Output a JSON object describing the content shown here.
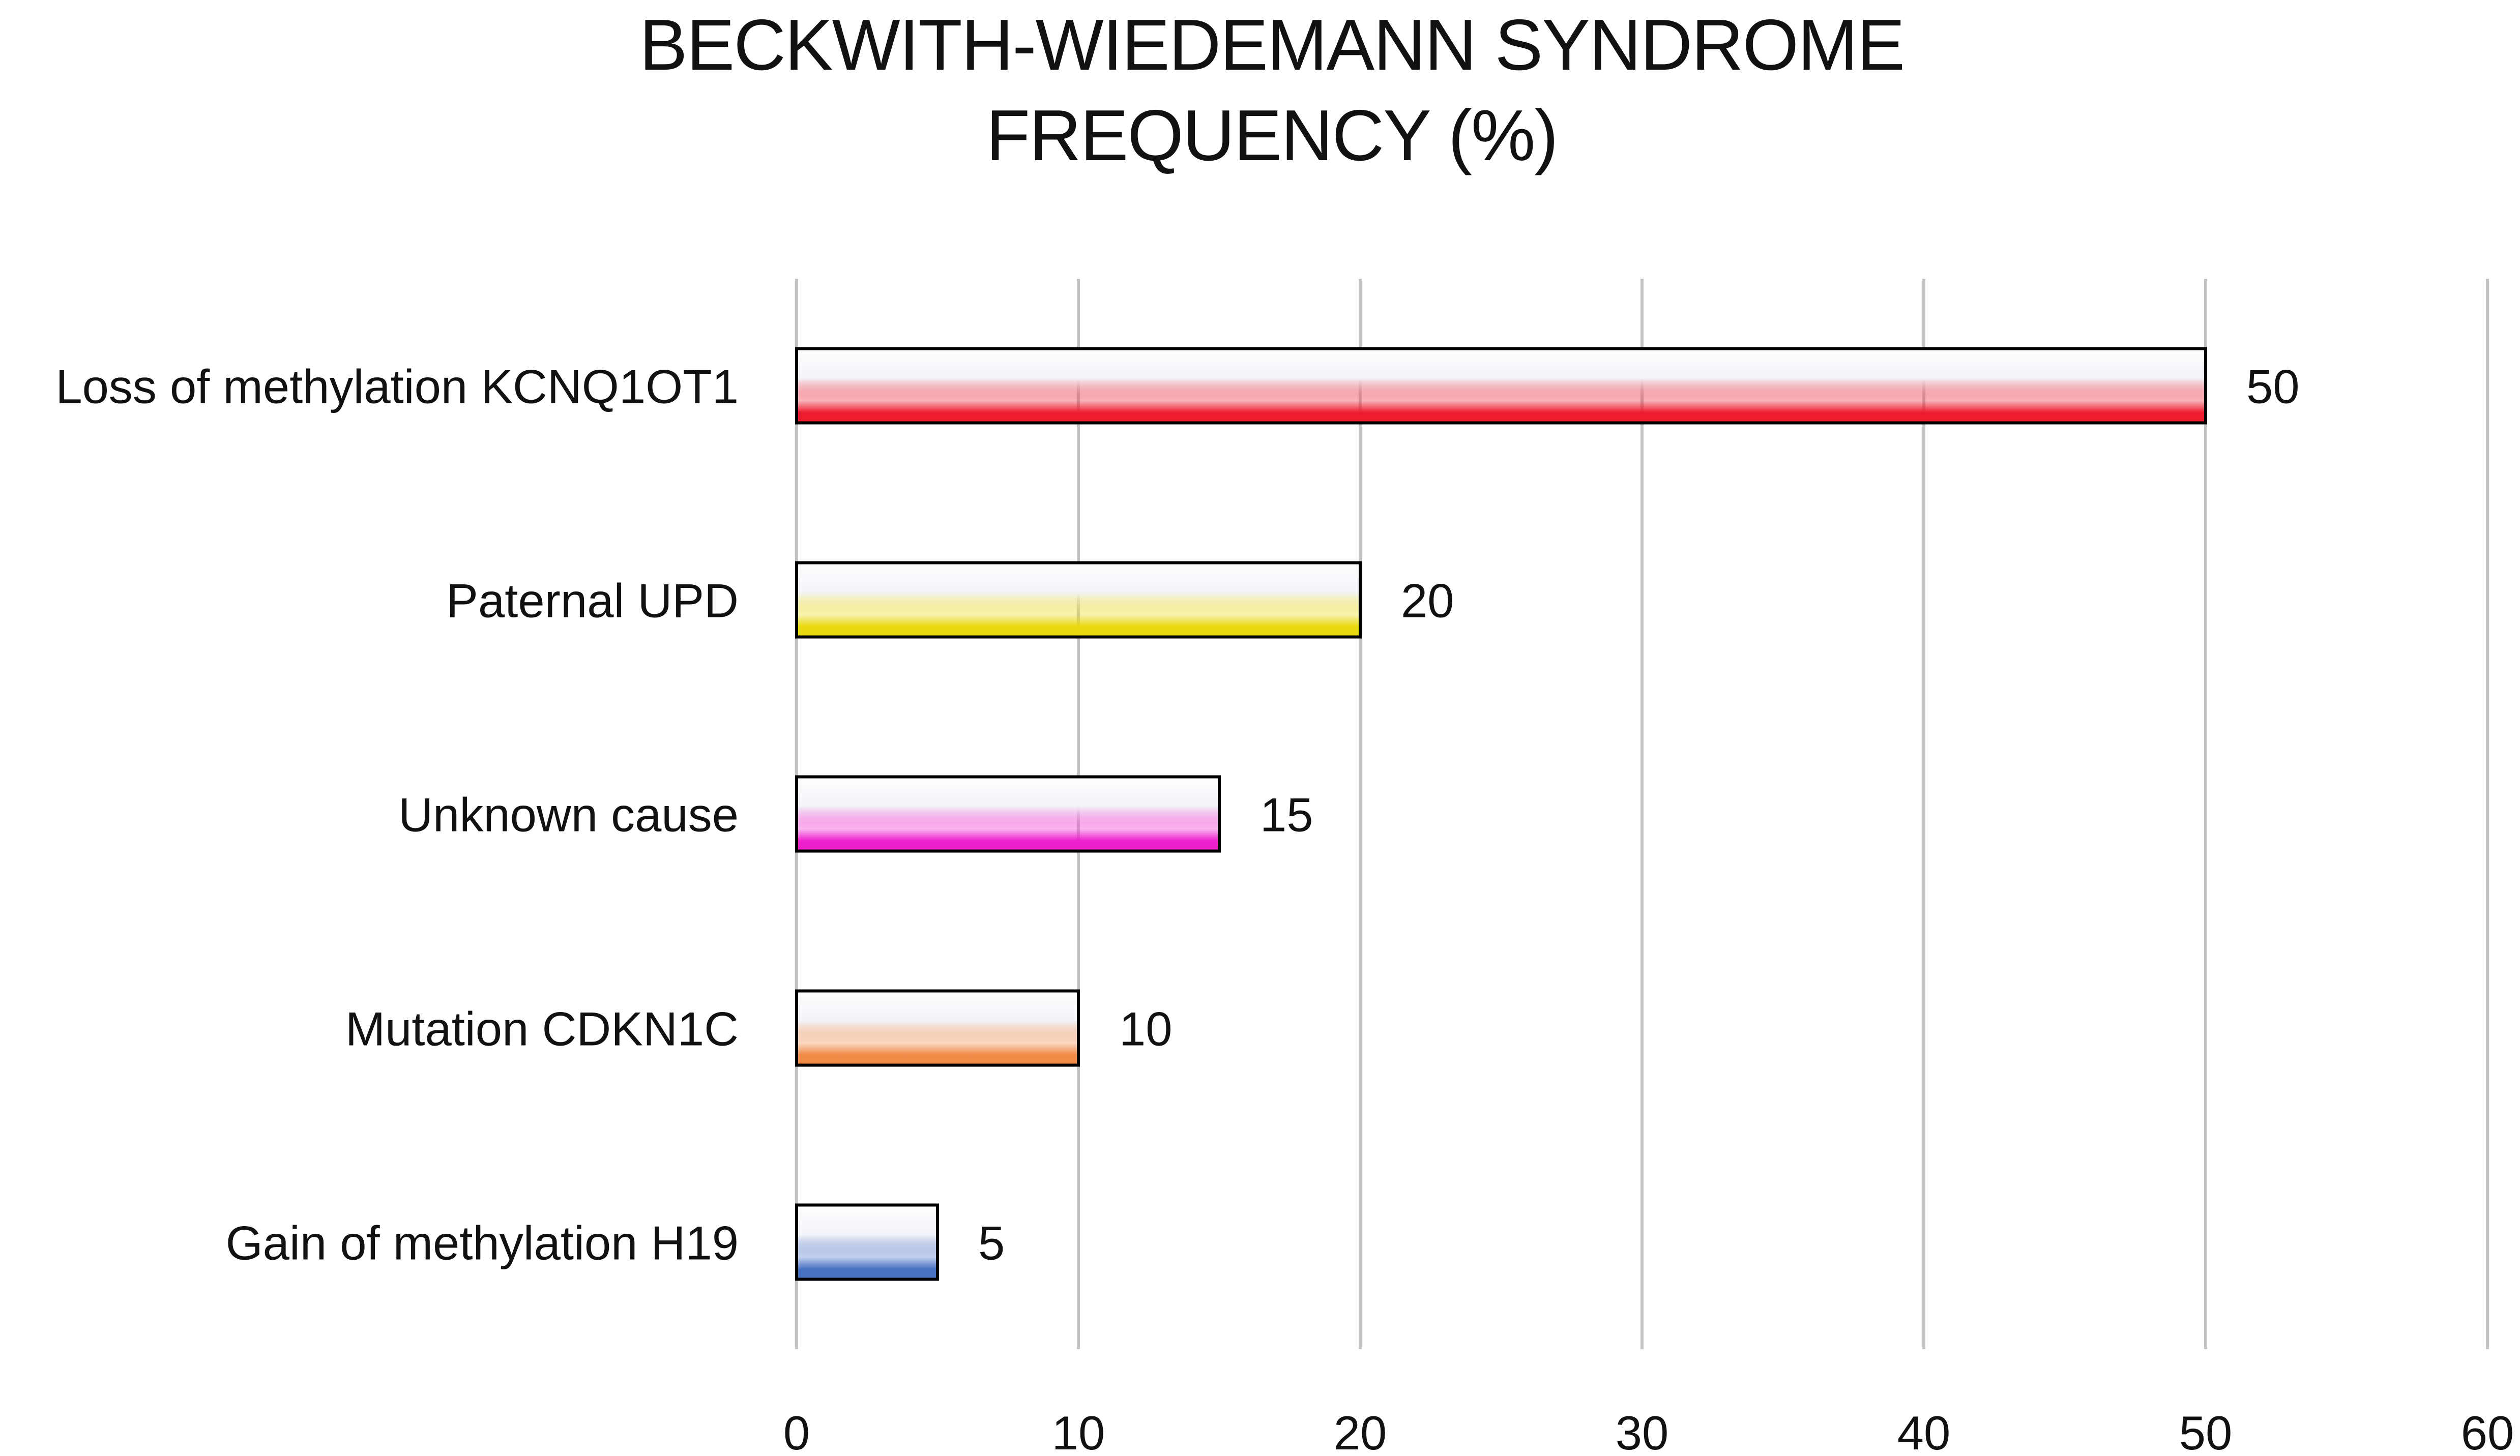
{
  "chart_data": {
    "type": "bar",
    "orientation": "horizontal",
    "title": "BECKWITH-WIEDEMANN SYNDROME FREQUENCY (%)",
    "title_lines": [
      "BECKWITH-WIEDEMANN SYNDROME",
      "FREQUENCY (%)"
    ],
    "categories": [
      "Loss of methylation KCNQ1OT1",
      "Paternal UPD",
      "Unknown cause",
      "Mutation CDKN1C",
      "Gain of methylation H19"
    ],
    "values": [
      50,
      20,
      15,
      10,
      5
    ],
    "data_labels": [
      "50",
      "20",
      "15",
      "10",
      "5"
    ],
    "bar_colors": [
      "#ee1c2e",
      "#e8d80e",
      "#ee22cc",
      "#ef8a47",
      "#4a72c4"
    ],
    "xlabel": "",
    "ylabel": "",
    "xlim": [
      0,
      60
    ],
    "x_ticks": [
      0,
      10,
      20,
      30,
      40,
      50,
      60
    ],
    "x_tick_labels": [
      "0",
      "10",
      "20",
      "30",
      "40",
      "50",
      "60"
    ],
    "grid": "vertical",
    "legend": "none"
  }
}
